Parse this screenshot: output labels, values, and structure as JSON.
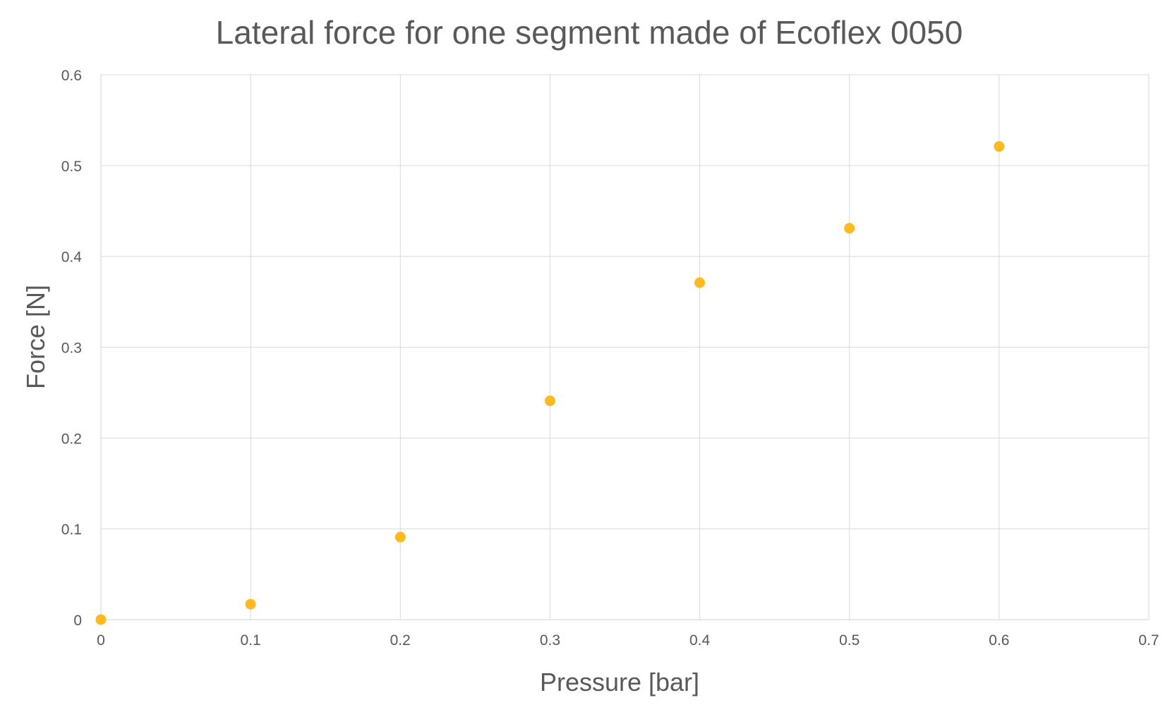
{
  "chart_data": {
    "type": "scatter",
    "title": "Lateral force for one segment made of Ecoflex 0050",
    "xlabel": "Pressure [bar]",
    "ylabel": "Force [N]",
    "xlim": [
      0,
      0.7
    ],
    "ylim": [
      0,
      0.6
    ],
    "xticks": [
      "0",
      "0.1",
      "0.2",
      "0.3",
      "0.4",
      "0.5",
      "0.6",
      "0.7"
    ],
    "yticks": [
      "0",
      "0.1",
      "0.2",
      "0.3",
      "0.4",
      "0.5",
      "0.6"
    ],
    "grid": true,
    "series": [
      {
        "x": [
          0,
          0.1,
          0.2,
          0.3,
          0.4,
          0.5,
          0.6
        ],
        "y": [
          0,
          0.017,
          0.091,
          0.241,
          0.371,
          0.431,
          0.521
        ],
        "color": "#FFB921"
      }
    ],
    "colors": {
      "marker": "#FFB921",
      "text": "#595959",
      "grid": "#D9D9D9"
    }
  }
}
